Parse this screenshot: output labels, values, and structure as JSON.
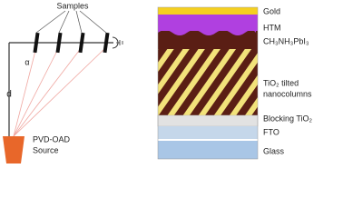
{
  "setup": {
    "samples_label": "Samples",
    "angle_label": "α",
    "distance_label": "d",
    "source_label": [
      "PVD-OAD",
      "Source"
    ]
  },
  "layers": [
    {
      "label": "Gold"
    },
    {
      "label": "HTM"
    },
    {
      "label": "CH₃NH₃PbI₃"
    },
    {
      "label": [
        "TiO₂ tilted",
        "nanocolumns"
      ]
    },
    {
      "label": "Blocking TiO₂"
    },
    {
      "label": "FTO"
    },
    {
      "label": "Glass"
    }
  ]
}
